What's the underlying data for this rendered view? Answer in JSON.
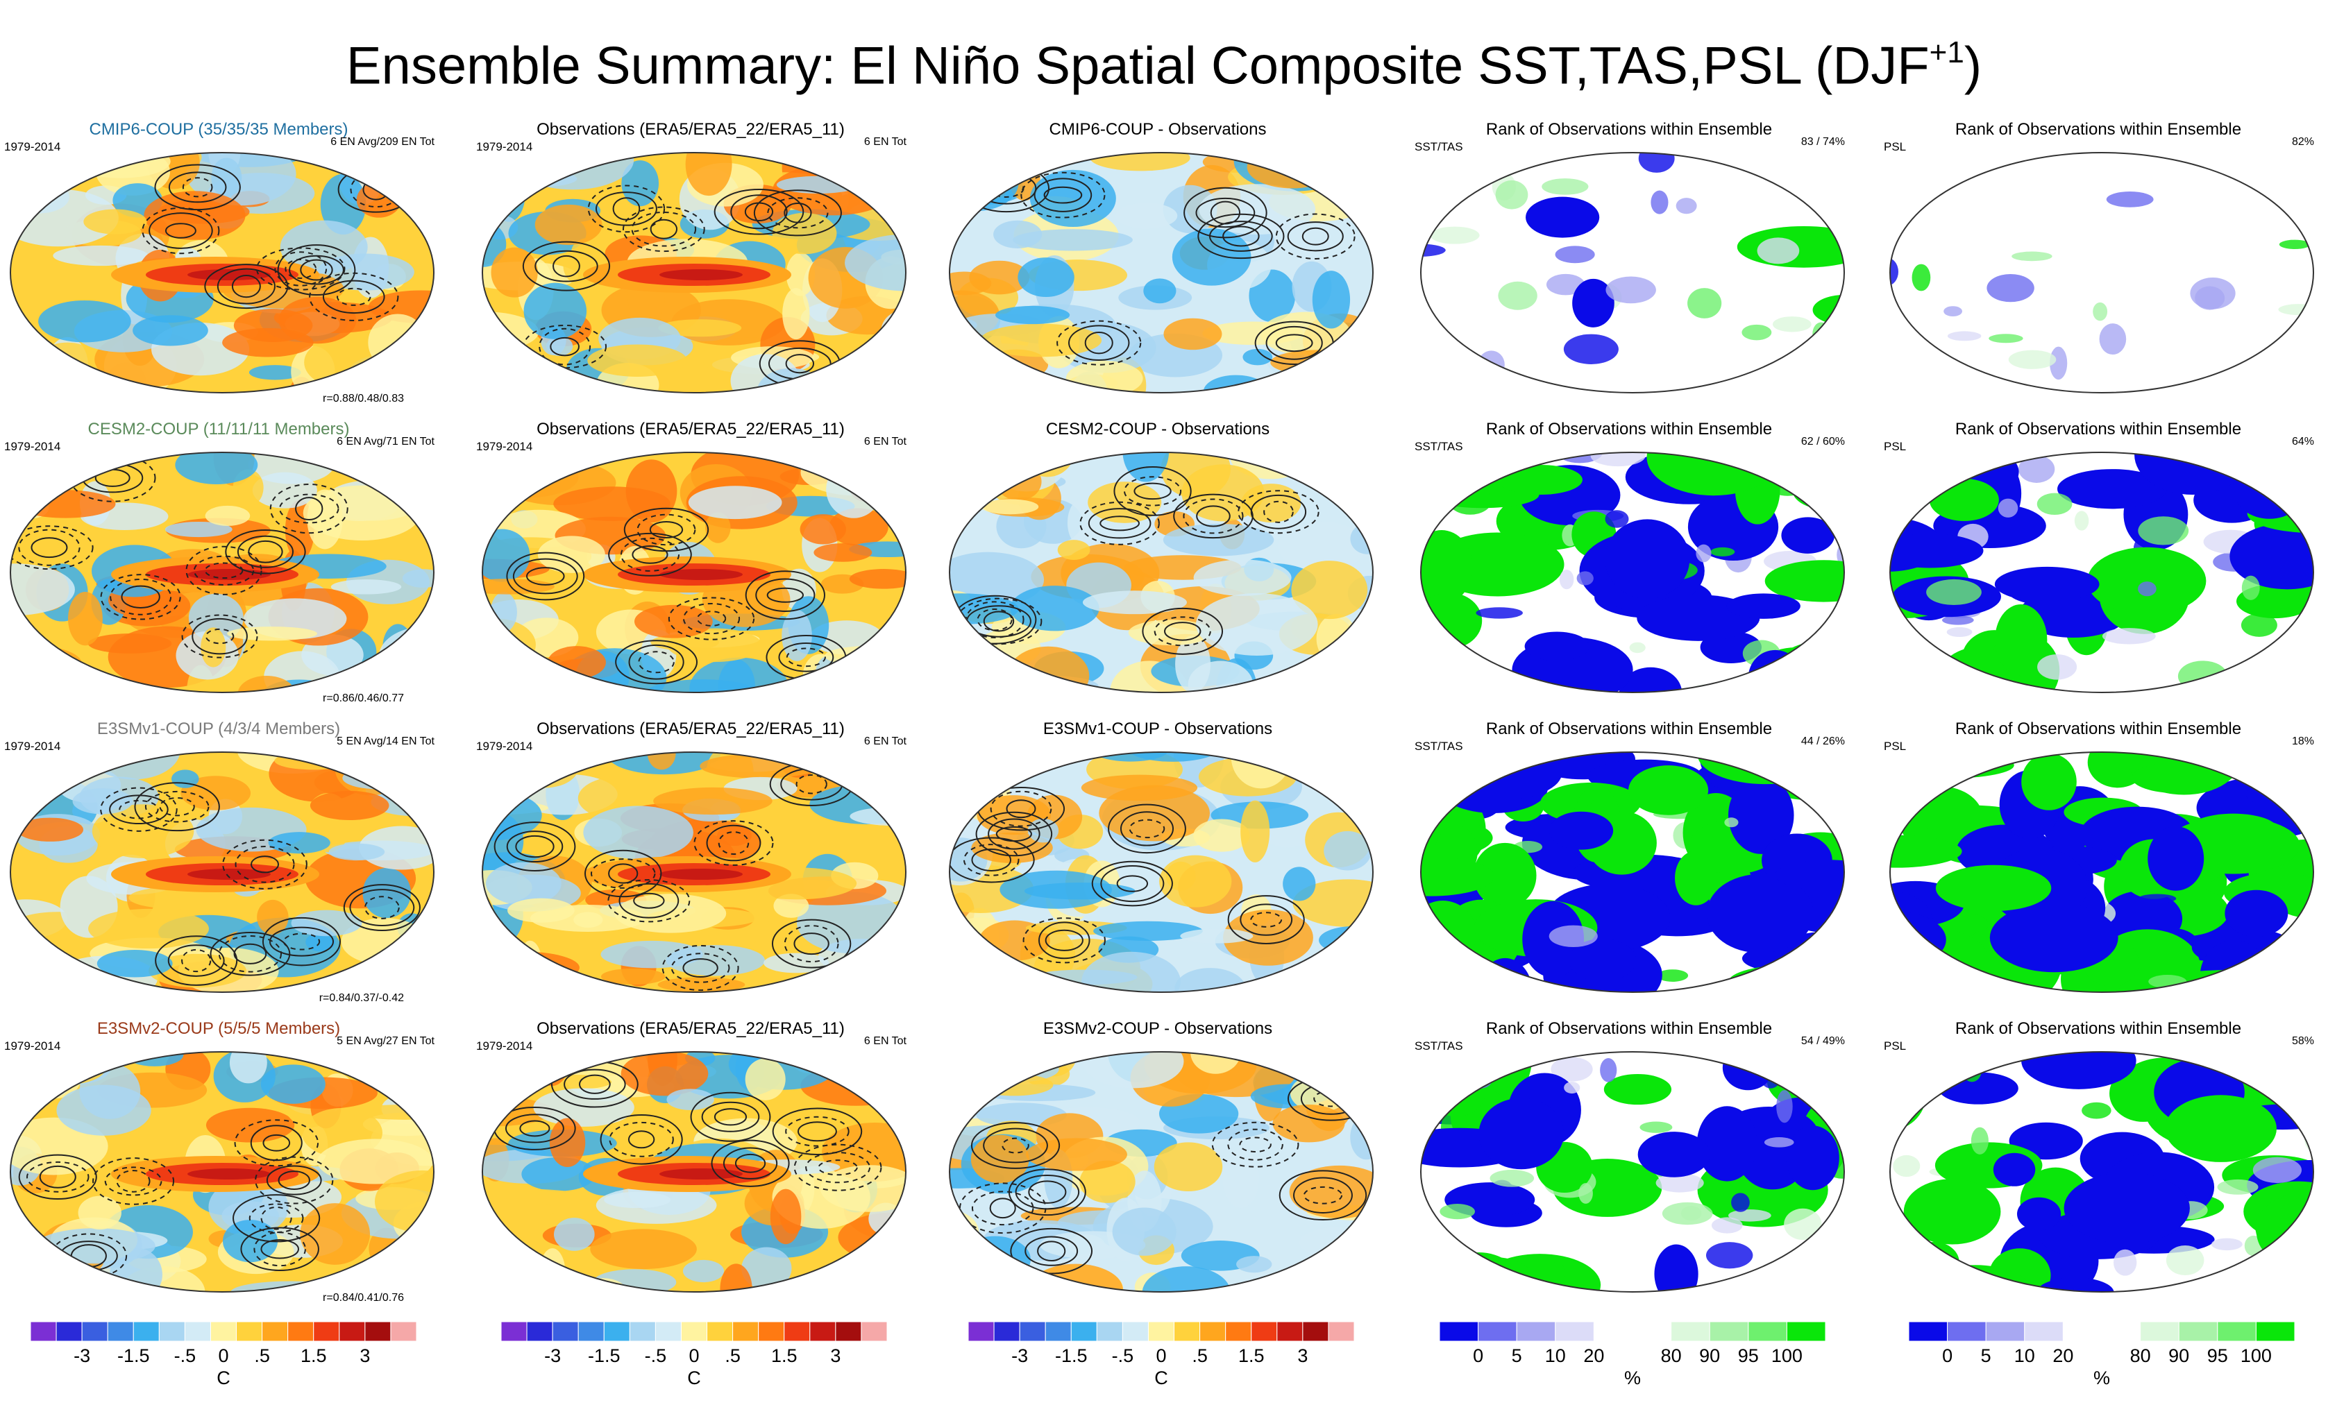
{
  "title": {
    "main": "Ensemble Summary: El Niño Spatial Composite SST,TAS,PSL (DJF",
    "sup": "+1",
    "close": ")"
  },
  "colors": {
    "cmip6": "#1f6fa0",
    "cesm2": "#5a8a5a",
    "e3smv1": "#7a7a7a",
    "e3smv2": "#9a3a1a",
    "anomaly_scale": [
      "#7b2fd4",
      "#2a2ad8",
      "#3a5fe0",
      "#3f8ae6",
      "#3bb0ee",
      "#a9d6f2",
      "#d3ebf6",
      "#fff3a0",
      "#ffd23c",
      "#ffa61e",
      "#ff7a12",
      "#ef3c14",
      "#c81a14",
      "#a40e0e",
      "#f5a8a8"
    ],
    "rank_scale": [
      "#0a0ae8",
      "#6e6ef0",
      "#a8a8f2",
      "#dcdcf8",
      "#ffffff",
      "#ffffff",
      "#dcf8dc",
      "#a8f2a8",
      "#6ef06e",
      "#0ae60a"
    ]
  },
  "rows": [
    {
      "model_title": "CMIP6-COUP (35/35/35 Members)",
      "years": "1979-2014",
      "ens_info": "6 EN Avg/209 EN Tot",
      "corr": "r=0.88/0.48/0.83",
      "obs_title": "Observations (ERA5/ERA5_22/ERA5_11)",
      "obs_years": "1979-2014",
      "obs_info": "6 EN Tot",
      "diff_title": "CMIP6-COUP - Observations",
      "rank1_title": "Rank of Observations within Ensemble",
      "rank1_left": "SST/TAS",
      "rank1_right": "83 /  74%",
      "rank2_title": "Rank of Observations within Ensemble",
      "rank2_left": "PSL",
      "rank2_right": "82%"
    },
    {
      "model_title": "CESM2-COUP (11/11/11 Members)",
      "years": "1979-2014",
      "ens_info": "6 EN Avg/71 EN Tot",
      "corr": "r=0.86/0.46/0.77",
      "obs_title": "Observations (ERA5/ERA5_22/ERA5_11)",
      "obs_years": "1979-2014",
      "obs_info": "6 EN Tot",
      "diff_title": "CESM2-COUP - Observations",
      "rank1_title": "Rank of Observations within Ensemble",
      "rank1_left": "SST/TAS",
      "rank1_right": "62 /  60%",
      "rank2_title": "Rank of Observations within Ensemble",
      "rank2_left": "PSL",
      "rank2_right": "64%"
    },
    {
      "model_title": "E3SMv1-COUP (4/3/4 Members)",
      "years": "1979-2014",
      "ens_info": "5 EN Avg/14 EN Tot",
      "corr": "r=0.84/0.37/-0.42",
      "obs_title": "Observations (ERA5/ERA5_22/ERA5_11)",
      "obs_years": "1979-2014",
      "obs_info": "6 EN Tot",
      "diff_title": "E3SMv1-COUP - Observations",
      "rank1_title": "Rank of Observations within Ensemble",
      "rank1_left": "SST/TAS",
      "rank1_right": "44 /  26%",
      "rank2_title": "Rank of Observations within Ensemble",
      "rank2_left": "PSL",
      "rank2_right": "18%"
    },
    {
      "model_title": "E3SMv2-COUP (5/5/5 Members)",
      "years": "1979-2014",
      "ens_info": "5 EN Avg/27 EN Tot",
      "corr": "r=0.84/0.41/0.76",
      "obs_title": "Observations (ERA5/ERA5_22/ERA5_11)",
      "obs_years": "1979-2014",
      "obs_info": "6 EN Tot",
      "diff_title": "E3SMv2-COUP - Observations",
      "rank1_title": "Rank of Observations within Ensemble",
      "rank1_left": "SST/TAS",
      "rank1_right": "54 /  49%",
      "rank2_title": "Rank of Observations within Ensemble",
      "rank2_left": "PSL",
      "rank2_right": "58%"
    }
  ],
  "colorbars": {
    "anomaly": {
      "labels": [
        "-3",
        "-1.5",
        "-.5",
        "0",
        ".5",
        "1.5",
        "3"
      ],
      "unit": "C"
    },
    "rank": {
      "labels": [
        "0",
        "5",
        "10",
        "20",
        "80",
        "90",
        "95",
        "100"
      ],
      "unit": "%"
    }
  }
}
